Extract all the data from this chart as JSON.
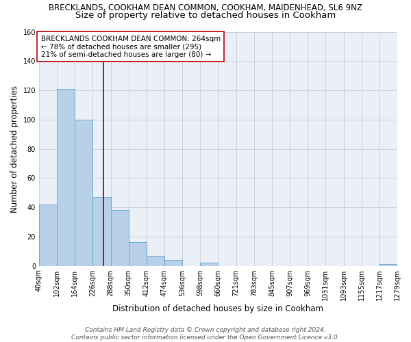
{
  "title": "BRECKLANDS, COOKHAM DEAN COMMON, COOKHAM, MAIDENHEAD, SL6 9NZ",
  "subtitle": "Size of property relative to detached houses in Cookham",
  "xlabel": "Distribution of detached houses by size in Cookham",
  "ylabel": "Number of detached properties",
  "bar_values": [
    42,
    121,
    100,
    47,
    38,
    16,
    7,
    4,
    0,
    2,
    0,
    0,
    0,
    0,
    0,
    0,
    0,
    0,
    0,
    1
  ],
  "categories": [
    "40sqm",
    "102sqm",
    "164sqm",
    "226sqm",
    "288sqm",
    "350sqm",
    "412sqm",
    "474sqm",
    "536sqm",
    "598sqm",
    "660sqm",
    "721sqm",
    "783sqm",
    "845sqm",
    "907sqm",
    "969sqm",
    "1031sqm",
    "1093sqm",
    "1155sqm",
    "1217sqm",
    "1279sqm"
  ],
  "bar_color": "#b8d0e8",
  "bar_edge_color": "#6aaad4",
  "bar_edge_width": 0.7,
  "vline_color": "#bb0000",
  "annotation_text": "BRECKLANDS COOKHAM DEAN COMMON: 264sqm\n← 78% of detached houses are smaller (295)\n21% of semi-detached houses are larger (80) →",
  "annotation_box_color": "#ffffff",
  "annotation_box_edge_color": "#bb0000",
  "ylim": [
    0,
    160
  ],
  "yticks": [
    0,
    20,
    40,
    60,
    80,
    100,
    120,
    140,
    160
  ],
  "grid_color": "#cccccc",
  "bg_color": "#eaeff8",
  "footer_line1": "Contains HM Land Registry data © Crown copyright and database right 2024.",
  "footer_line2": "Contains public sector information licensed under the Open Government Licence v3.0.",
  "title_fontsize": 8.5,
  "subtitle_fontsize": 9.5,
  "xlabel_fontsize": 8.5,
  "ylabel_fontsize": 8.5,
  "tick_fontsize": 7,
  "annotation_fontsize": 7.5,
  "footer_fontsize": 6.5
}
